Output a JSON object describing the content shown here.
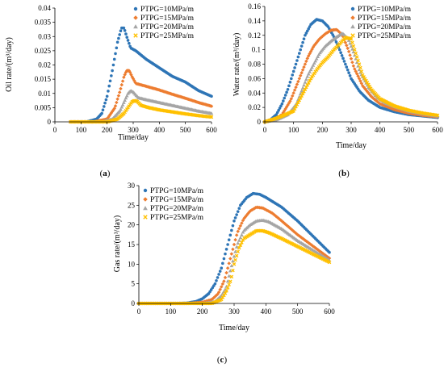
{
  "colors": {
    "PTPG=10MPa/m": "#2E75B6",
    "PTPG=15MPa/m": "#ED7D31",
    "PTPG=20MPa/m": "#A5A5A5",
    "PTPG=25MPa/m": "#FFC000"
  },
  "chart_data": [
    {
      "id": "a",
      "type": "scatter",
      "panel_label": "a",
      "xlabel": "Time/day",
      "ylabel": "Oil rate/(m³/day)",
      "xlim": [
        0,
        600
      ],
      "ylim": [
        0,
        0.04
      ],
      "xticks": [
        "0",
        "100",
        "200",
        "300",
        "400",
        "500",
        "600"
      ],
      "yticks": [
        "0",
        "0.005",
        "0.01",
        "0.015",
        "0.02",
        "0.025",
        "0.03",
        "0.035",
        "0.04"
      ],
      "grid": false,
      "legend_position": "top-right",
      "series": [
        {
          "name": "PTPG=10MPa/m",
          "marker": "circle",
          "x": [
            60,
            120,
            160,
            180,
            200,
            220,
            240,
            255,
            265,
            275,
            290,
            310,
            350,
            400,
            450,
            500,
            550,
            600
          ],
          "y": [
            0,
            0,
            0.001,
            0.003,
            0.009,
            0.018,
            0.028,
            0.033,
            0.033,
            0.03,
            0.026,
            0.025,
            0.022,
            0.019,
            0.016,
            0.014,
            0.011,
            0.009
          ]
        },
        {
          "name": "PTPG=15MPa/m",
          "marker": "diamond",
          "x": [
            60,
            150,
            200,
            230,
            250,
            265,
            275,
            285,
            295,
            310,
            350,
            400,
            450,
            500,
            550,
            600
          ],
          "y": [
            0,
            0,
            0.001,
            0.005,
            0.011,
            0.016,
            0.018,
            0.018,
            0.016,
            0.0135,
            0.0125,
            0.0112,
            0.0097,
            0.0083,
            0.0068,
            0.0055
          ]
        },
        {
          "name": "PTPG=20MPa/m",
          "marker": "triangle",
          "x": [
            60,
            180,
            220,
            250,
            265,
            280,
            290,
            300,
            320,
            350,
            400,
            450,
            500,
            550,
            600
          ],
          "y": [
            0,
            0,
            0.001,
            0.004,
            0.007,
            0.01,
            0.011,
            0.0105,
            0.0085,
            0.0078,
            0.0068,
            0.0058,
            0.0048,
            0.0038,
            0.003
          ]
        },
        {
          "name": "PTPG=25MPa/m",
          "marker": "x",
          "x": [
            60,
            200,
            240,
            265,
            280,
            295,
            305,
            315,
            330,
            360,
            400,
            450,
            500,
            550,
            600
          ],
          "y": [
            0,
            0,
            0.001,
            0.003,
            0.005,
            0.007,
            0.0075,
            0.0072,
            0.0058,
            0.005,
            0.0042,
            0.0035,
            0.0028,
            0.0022,
            0.0017
          ]
        }
      ]
    },
    {
      "id": "b",
      "type": "scatter",
      "panel_label": "b",
      "xlabel": "Time/day",
      "ylabel": "Water rate/(m³/day)",
      "xlim": [
        0,
        600
      ],
      "ylim": [
        0,
        0.16
      ],
      "xticks": [
        "0",
        "100",
        "200",
        "300",
        "400",
        "500",
        "600"
      ],
      "yticks": [
        "0",
        "0.02",
        "0.04",
        "0.06",
        "0.08",
        "0.1",
        "0.12",
        "0.14",
        "0.16"
      ],
      "grid": false,
      "legend_position": "top-right",
      "series": [
        {
          "name": "PTPG=10MPa/m",
          "marker": "circle",
          "x": [
            0,
            20,
            40,
            60,
            80,
            100,
            120,
            140,
            160,
            180,
            200,
            220,
            240,
            260,
            280,
            300,
            330,
            360,
            400,
            450,
            500,
            550,
            600
          ],
          "y": [
            0,
            0.003,
            0.01,
            0.025,
            0.045,
            0.07,
            0.095,
            0.12,
            0.135,
            0.142,
            0.14,
            0.132,
            0.118,
            0.1,
            0.08,
            0.06,
            0.042,
            0.03,
            0.02,
            0.014,
            0.01,
            0.008,
            0.006
          ]
        },
        {
          "name": "PTPG=15MPa/m",
          "marker": "diamond",
          "x": [
            0,
            30,
            60,
            90,
            110,
            130,
            150,
            170,
            190,
            210,
            230,
            250,
            270,
            290,
            310,
            340,
            370,
            400,
            450,
            500,
            550,
            600
          ],
          "y": [
            0,
            0.003,
            0.01,
            0.03,
            0.05,
            0.07,
            0.09,
            0.105,
            0.115,
            0.122,
            0.127,
            0.128,
            0.12,
            0.1,
            0.075,
            0.05,
            0.035,
            0.025,
            0.017,
            0.012,
            0.009,
            0.007
          ]
        },
        {
          "name": "PTPG=20MPa/m",
          "marker": "triangle",
          "x": [
            0,
            40,
            80,
            110,
            130,
            150,
            170,
            190,
            210,
            230,
            250,
            270,
            290,
            310,
            330,
            360,
            390,
            420,
            460,
            500,
            550,
            600
          ],
          "y": [
            0,
            0.003,
            0.01,
            0.025,
            0.045,
            0.065,
            0.08,
            0.095,
            0.105,
            0.112,
            0.118,
            0.123,
            0.115,
            0.095,
            0.07,
            0.048,
            0.034,
            0.026,
            0.02,
            0.015,
            0.011,
            0.008
          ]
        },
        {
          "name": "PTPG=25MPa/m",
          "marker": "x",
          "x": [
            0,
            40,
            60,
            100,
            120,
            140,
            160,
            180,
            200,
            220,
            240,
            260,
            280,
            300,
            320,
            340,
            370,
            400,
            450,
            500,
            550,
            600
          ],
          "y": [
            0,
            0.005,
            0.008,
            0.015,
            0.03,
            0.045,
            0.06,
            0.072,
            0.082,
            0.09,
            0.1,
            0.108,
            0.117,
            0.115,
            0.09,
            0.065,
            0.045,
            0.032,
            0.022,
            0.016,
            0.012,
            0.009
          ]
        }
      ]
    },
    {
      "id": "c",
      "type": "scatter",
      "panel_label": "c",
      "xlabel": "Time/day",
      "ylabel": "Gas rate/(m³/day)",
      "xlim": [
        0,
        600
      ],
      "ylim": [
        0,
        30
      ],
      "xticks": [
        "0",
        "100",
        "200",
        "300",
        "400",
        "500",
        "600"
      ],
      "yticks": [
        "0",
        "5",
        "10",
        "15",
        "20",
        "25",
        "30"
      ],
      "grid": false,
      "legend_position": "top-left",
      "series": [
        {
          "name": "PTPG=10MPa/m",
          "marker": "circle",
          "x": [
            0,
            100,
            150,
            180,
            200,
            220,
            240,
            260,
            280,
            300,
            320,
            340,
            360,
            380,
            400,
            450,
            500,
            550,
            600
          ],
          "y": [
            0,
            0,
            0.1,
            0.5,
            1.2,
            2.5,
            5,
            9,
            15,
            21,
            25,
            27,
            28,
            27.8,
            27,
            24.5,
            21,
            17,
            13
          ]
        },
        {
          "name": "PTPG=15MPa/m",
          "marker": "diamond",
          "x": [
            0,
            150,
            200,
            230,
            250,
            270,
            290,
            310,
            330,
            350,
            370,
            390,
            420,
            450,
            500,
            550,
            600
          ],
          "y": [
            0,
            0,
            0.3,
            1,
            2.5,
            6,
            12,
            18,
            21.5,
            23.5,
            24.5,
            24.3,
            23,
            21,
            17.5,
            14.5,
            11.5
          ]
        },
        {
          "name": "PTPG=20MPa/m",
          "marker": "triangle",
          "x": [
            0,
            200,
            240,
            260,
            275,
            290,
            310,
            330,
            350,
            370,
            390,
            410,
            450,
            500,
            550,
            600
          ],
          "y": [
            0,
            0,
            0.5,
            2,
            4,
            9,
            15,
            18.5,
            20,
            21,
            21.2,
            20.8,
            19,
            16,
            13.5,
            11
          ]
        },
        {
          "name": "PTPG=25MPa/m",
          "marker": "x",
          "x": [
            0,
            230,
            260,
            275,
            290,
            300,
            315,
            330,
            350,
            370,
            390,
            410,
            450,
            500,
            550,
            600
          ],
          "y": [
            0,
            0,
            1,
            3,
            6,
            10,
            14,
            16.5,
            17.5,
            18.5,
            18.5,
            18,
            16.5,
            14.5,
            12.5,
            10.5
          ]
        }
      ]
    }
  ]
}
